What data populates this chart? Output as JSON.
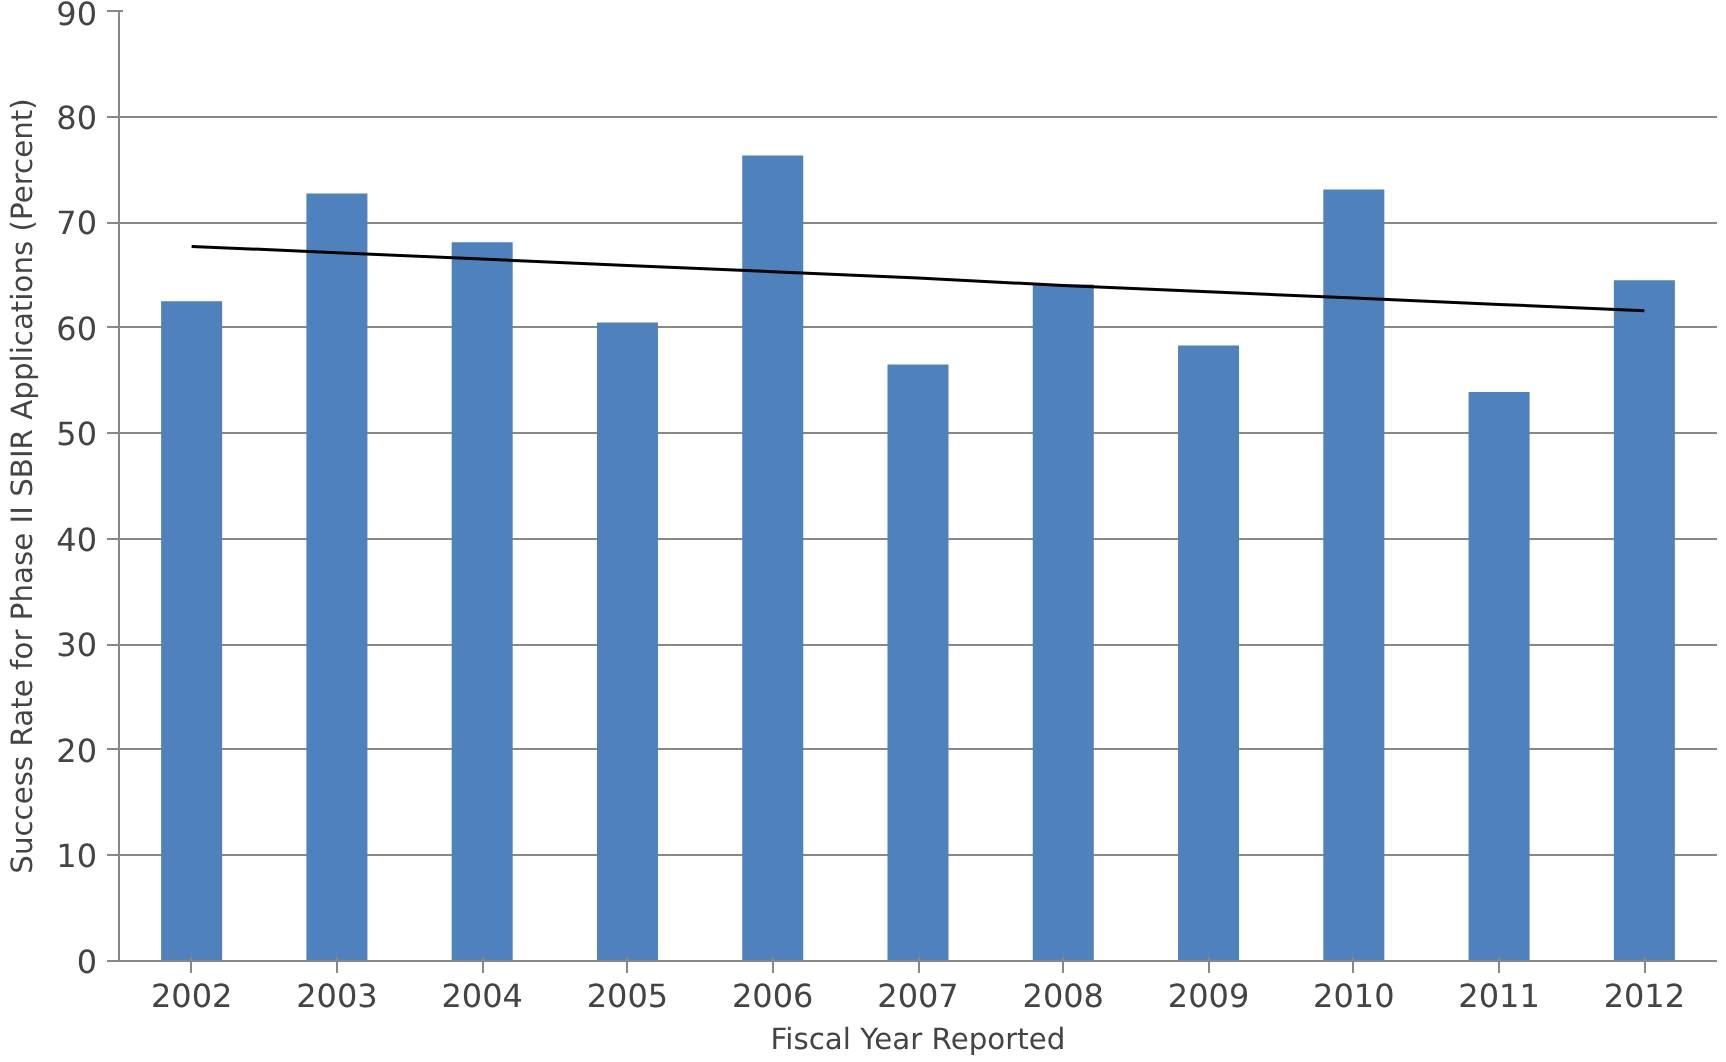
{
  "chart_data": {
    "type": "bar",
    "xlabel": "Fiscal Year Reported",
    "ylabel": "Success Rate for Phase II SBIR Applications (Percent)",
    "categories": [
      "2002",
      "2003",
      "2004",
      "2005",
      "2006",
      "2007",
      "2008",
      "2009",
      "2010",
      "2011",
      "2012"
    ],
    "series": [
      {
        "color": "#4f81bd",
        "values": [
          62.5,
          72.7,
          68.1,
          60.5,
          76.3,
          56.5,
          64.1,
          58.3,
          73.1,
          53.9,
          64.5
        ]
      },
      {
        "type": "line",
        "color": "#000000",
        "values": [
          67.7,
          67.1,
          66.5,
          65.9,
          65.3,
          64.7,
          64.0,
          63.4,
          62.8,
          62.2,
          61.6
        ]
      }
    ],
    "ylim": [
      0,
      90
    ],
    "yticks": [
      0,
      10,
      20,
      30,
      40,
      50,
      60,
      70,
      80,
      90
    ],
    "grid": "y"
  }
}
